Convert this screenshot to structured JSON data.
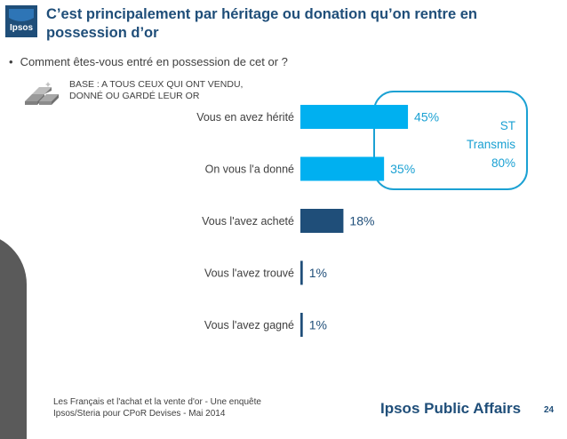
{
  "header": {
    "title": "C’est principalement par héritage ou donation qu’on rentre en possession d’or",
    "logo_text": "Ipsos"
  },
  "question": "Comment êtes-vous entré en possession de cet or ?",
  "base": {
    "line1": "BASE : A TOUS CEUX QUI ONT VENDU,",
    "line2": "DONNÉ OU GARDÉ LEUR OR"
  },
  "chart_data": {
    "type": "bar",
    "orientation": "horizontal",
    "categories": [
      "Vous en avez hérité",
      "On vous l'a donné",
      "Vous l'avez acheté",
      "Vous l'avez trouvé",
      "Vous l'avez gagné"
    ],
    "values": [
      45,
      35,
      18,
      1,
      1
    ],
    "value_labels": [
      "45%",
      "35%",
      "18%",
      "1%",
      "1%"
    ],
    "bar_colors": [
      "#00b0f0",
      "#00b0f0",
      "#1f4e79",
      "#1f4e79",
      "#1f4e79"
    ],
    "xlim": [
      0,
      100
    ],
    "grid": false,
    "annotation": {
      "line1": "ST",
      "line2": "Transmis",
      "line3": "80%",
      "color": "#1ba1d3"
    }
  },
  "footer": {
    "source_line1": "Les Français et l'achat et la vente d'or - Une enquête",
    "source_line2": "Ipsos/Steria pour CPoR Devises - Mai 2014",
    "brand": "Ipsos Public Affairs",
    "page_number": "24"
  },
  "colors": {
    "title": "#1f4e79",
    "light_bar": "#00b0f0",
    "dark_bar": "#1f4e79",
    "annotation": "#1ba1d3"
  }
}
